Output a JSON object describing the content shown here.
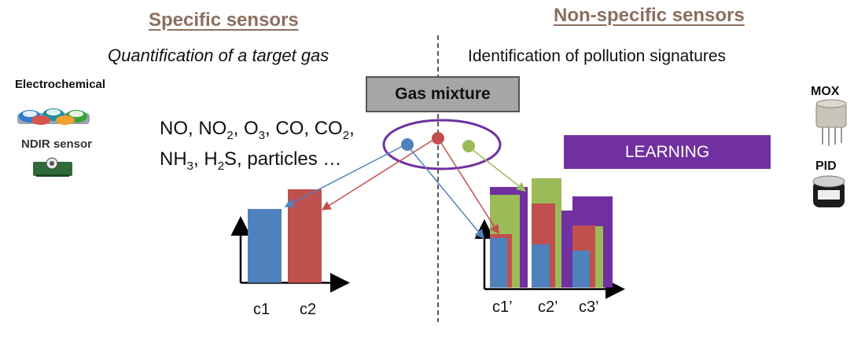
{
  "headings": {
    "specific": "Specific sensors",
    "non_specific": "Non-specific sensors"
  },
  "subtitles": {
    "specific": "Quantification of a target gas",
    "non_specific": "Identification of pollution signatures"
  },
  "center": {
    "gas_mixture": "Gas mixture",
    "learning": "LEARNING"
  },
  "left_sensors": {
    "electrochemical": "Electrochemical",
    "ndir": "NDIR sensor"
  },
  "right_sensors": {
    "mox": "MOX",
    "pid": "PID"
  },
  "gases": {
    "line1": {
      "no": "NO, NO",
      "no2_sub": "2",
      "o3": ", O",
      "o3_sub": "3",
      "co": ", CO, CO",
      "co2_sub": "2",
      "end": ","
    },
    "line2": {
      "nh": "NH",
      "nh3_sub": "3",
      "h2s": ", H",
      "h2s_sub": "2",
      "s": "S,",
      "particles": "particles …"
    }
  },
  "colors": {
    "blue": "#4f81bd",
    "red": "#c0504d",
    "green": "#9bbb59",
    "purple": "#7030a0"
  },
  "left_chart": {
    "categories": [
      "c1",
      "c2"
    ]
  },
  "right_chart": {
    "categories": [
      "c1’",
      "c2’",
      "c3’"
    ]
  }
}
